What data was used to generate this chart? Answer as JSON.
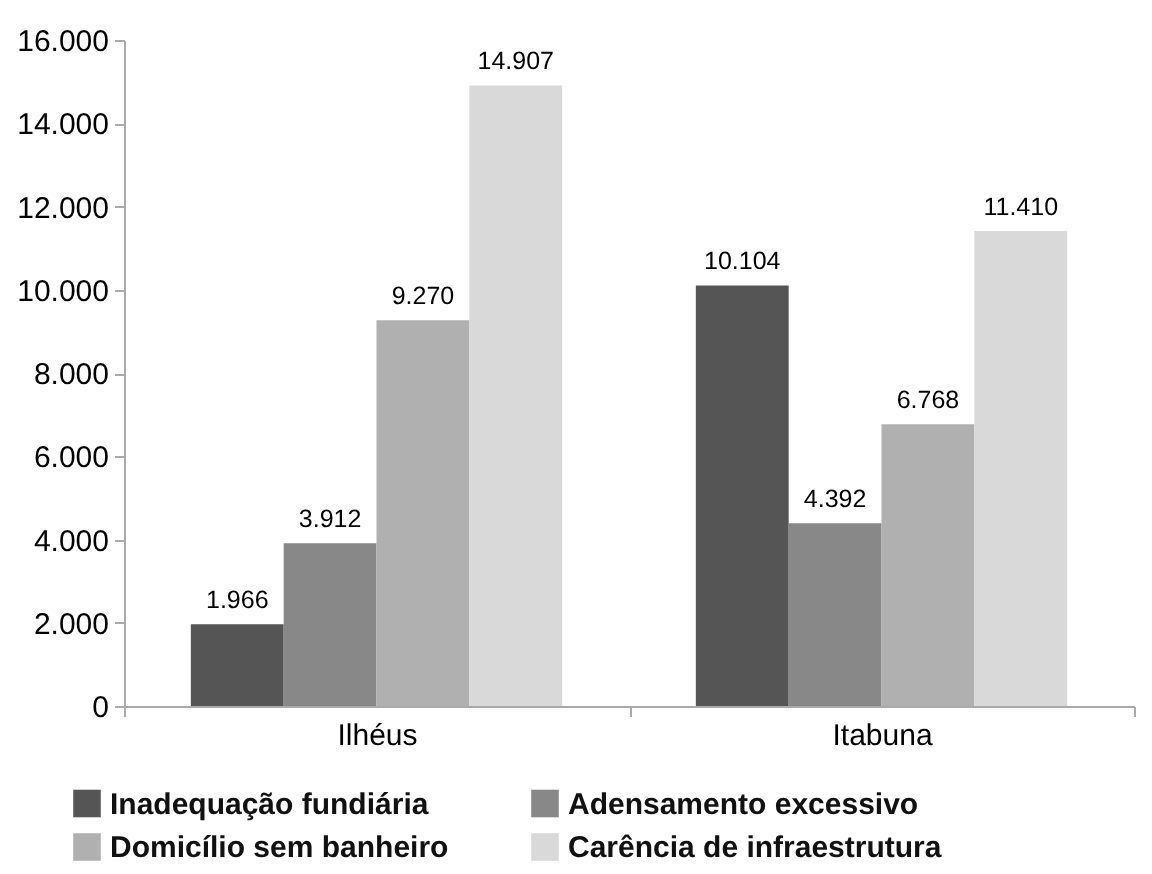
{
  "chart_data": {
    "type": "bar",
    "categories": [
      "Ilhéus",
      "Itabuna"
    ],
    "series": [
      {
        "name": "Inadequação fundiária",
        "color": "#555555",
        "values": [
          1966,
          10104
        ],
        "value_labels": [
          "1.966",
          "10.104"
        ]
      },
      {
        "name": "Adensamento excessivo",
        "color": "#888888",
        "values": [
          3912,
          4392
        ],
        "value_labels": [
          "3.912",
          "4.392"
        ]
      },
      {
        "name": "Domicílio sem banheiro",
        "color": "#b0b0b0",
        "values": [
          9270,
          6768
        ],
        "value_labels": [
          "9.270",
          "6.768"
        ]
      },
      {
        "name": "Carência de infraestrutura",
        "color": "#d9d9d9",
        "values": [
          14907,
          11410
        ],
        "value_labels": [
          "14.907",
          "11.410"
        ]
      }
    ],
    "ylim": [
      0,
      16000
    ],
    "yticks": [
      {
        "value": 0,
        "label": "0"
      },
      {
        "value": 2000,
        "label": "2.000"
      },
      {
        "value": 4000,
        "label": "4.000"
      },
      {
        "value": 6000,
        "label": "6.000"
      },
      {
        "value": 8000,
        "label": "8.000"
      },
      {
        "value": 10000,
        "label": "10.000"
      },
      {
        "value": 12000,
        "label": "12.000"
      },
      {
        "value": 14000,
        "label": "14.000"
      },
      {
        "value": 16000,
        "label": "16.000"
      }
    ],
    "grid": false,
    "legend": "bottom"
  }
}
